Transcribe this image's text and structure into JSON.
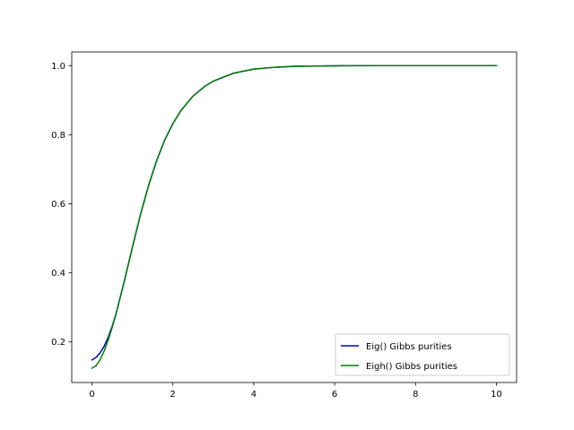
{
  "chart_data": {
    "type": "line",
    "title": "",
    "xlabel": "",
    "ylabel": "",
    "xlim": [
      -0.5,
      10.5
    ],
    "ylim": [
      0.0824,
      1.0396
    ],
    "grid": false,
    "legend_position": "lower-right",
    "x_ticks": [
      {
        "value": 0,
        "label": "0"
      },
      {
        "value": 2,
        "label": "2"
      },
      {
        "value": 4,
        "label": "4"
      },
      {
        "value": 6,
        "label": "6"
      },
      {
        "value": 8,
        "label": "8"
      },
      {
        "value": 10,
        "label": "10"
      }
    ],
    "y_ticks": [
      {
        "value": 0.2,
        "label": "0.2"
      },
      {
        "value": 0.4,
        "label": "0.4"
      },
      {
        "value": 0.6,
        "label": "0.6"
      },
      {
        "value": 0.8,
        "label": "0.8"
      },
      {
        "value": 1.0,
        "label": "1.0"
      }
    ],
    "series": [
      {
        "name": "Eig() Gibbs purities",
        "color": "#0000cc",
        "x": [
          0,
          0.1,
          0.2,
          0.3,
          0.4,
          0.5,
          0.6,
          0.8,
          1.0,
          1.2,
          1.4,
          1.6,
          1.8,
          2.0,
          2.2,
          2.5,
          2.8,
          3.0,
          3.5,
          4.0,
          4.5,
          5.0,
          6.0,
          7.0,
          8.0,
          10.0
        ],
        "y": [
          0.148,
          0.155,
          0.168,
          0.187,
          0.213,
          0.245,
          0.284,
          0.376,
          0.474,
          0.569,
          0.653,
          0.725,
          0.785,
          0.832,
          0.87,
          0.912,
          0.941,
          0.955,
          0.978,
          0.99,
          0.995,
          0.998,
          0.9995,
          0.9999,
          1.0,
          1.0
        ]
      },
      {
        "name": "Eigh() Gibbs purities",
        "color": "#008000",
        "x": [
          0,
          0.1,
          0.2,
          0.3,
          0.4,
          0.5,
          0.6,
          0.8,
          1.0,
          1.2,
          1.4,
          1.6,
          1.8,
          2.0,
          2.2,
          2.5,
          2.8,
          3.0,
          3.5,
          4.0,
          4.5,
          5.0,
          6.0,
          7.0,
          8.0,
          10.0
        ],
        "y": [
          0.124,
          0.131,
          0.148,
          0.173,
          0.205,
          0.242,
          0.283,
          0.376,
          0.474,
          0.569,
          0.653,
          0.725,
          0.785,
          0.832,
          0.87,
          0.912,
          0.941,
          0.955,
          0.978,
          0.99,
          0.995,
          0.998,
          0.9995,
          0.9999,
          1.0,
          1.0
        ]
      }
    ]
  }
}
